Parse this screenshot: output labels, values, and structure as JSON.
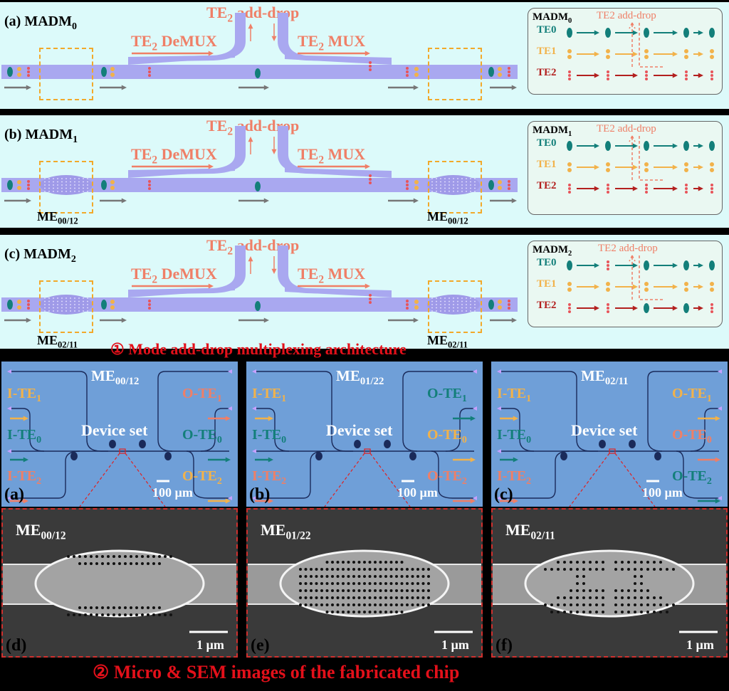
{
  "panels_top": [
    {
      "label": "(a) MADM",
      "sub": "0",
      "lens": null,
      "lens_sub": null
    },
    {
      "label": "(b) MADM",
      "sub": "1",
      "lens": "ME",
      "lens_sub": "00/12"
    },
    {
      "label": "(c) MADM",
      "sub": "2",
      "lens": "ME",
      "lens_sub": "02/11"
    }
  ],
  "schematic_text": {
    "add_drop_pre": "TE",
    "add_drop_sub": "2",
    "add_drop_post": " add-drop",
    "demux_pre": "TE",
    "demux_sub": "2",
    "demux_post": " DeMUX",
    "mux_pre": "TE",
    "mux_sub": "2",
    "mux_post": " MUX"
  },
  "legend": [
    {
      "title": "MADM",
      "sub": "0",
      "header": "TE2 add-drop",
      "rows": [
        "TE0",
        "TE1",
        "TE2"
      ]
    },
    {
      "title": "MADM",
      "sub": "1",
      "header": "TE2 add-drop",
      "rows": [
        "TE0",
        "TE1",
        "TE2"
      ]
    },
    {
      "title": "MADM",
      "sub": "2",
      "header": "TE2 add-drop",
      "rows": [
        "TE0",
        "TE1",
        "TE2"
      ]
    }
  ],
  "legend_rows_sub": [
    "0",
    "1",
    "2"
  ],
  "banner1": "① Mode add-drop multiplexing architecture",
  "micro": [
    {
      "letter": "(a)",
      "me": "ME",
      "me_sub": "00/12",
      "device": "Device set",
      "scale": "100 µm",
      "in": [
        [
          "I-TE",
          "1"
        ],
        [
          "I-TE",
          "0"
        ],
        [
          "I-TE",
          "2"
        ]
      ],
      "out": [
        [
          "O-TE",
          "1"
        ],
        [
          "O-TE",
          "0"
        ],
        [
          "O-TE",
          "2"
        ]
      ]
    },
    {
      "letter": "(b)",
      "me": "ME",
      "me_sub": "01/22",
      "device": "Device set",
      "scale": "100 µm",
      "in": [
        [
          "I-TE",
          "1"
        ],
        [
          "I-TE",
          "0"
        ],
        [
          "I-TE",
          "2"
        ]
      ],
      "out": [
        [
          "O-TE",
          "1"
        ],
        [
          "O-TE",
          "0"
        ],
        [
          "O-TE",
          "2"
        ]
      ]
    },
    {
      "letter": "(c)",
      "me": "ME",
      "me_sub": "02/11",
      "device": "Device set",
      "scale": "100 µm",
      "in": [
        [
          "I-TE",
          "1"
        ],
        [
          "I-TE",
          "0"
        ],
        [
          "I-TE",
          "2"
        ]
      ],
      "out": [
        [
          "O-TE",
          "1"
        ],
        [
          "O-TE",
          "0"
        ],
        [
          "O-TE",
          "2"
        ]
      ]
    }
  ],
  "sem": [
    {
      "letter": "(d)",
      "me": "ME",
      "me_sub": "00/12",
      "scale": "1 µm"
    },
    {
      "letter": "(e)",
      "me": "ME",
      "me_sub": "01/22",
      "scale": "1 µm"
    },
    {
      "letter": "(f)",
      "me": "ME",
      "me_sub": "02/11",
      "scale": "1 µm"
    }
  ],
  "banner2": "② Micro &  SEM images of the fabricated chip",
  "colors": {
    "te0": "#137f7a",
    "te1": "#f2b24a",
    "te2": "#b3201f",
    "waveguide": "#a9a8f0",
    "accent": "#ef7f67"
  }
}
